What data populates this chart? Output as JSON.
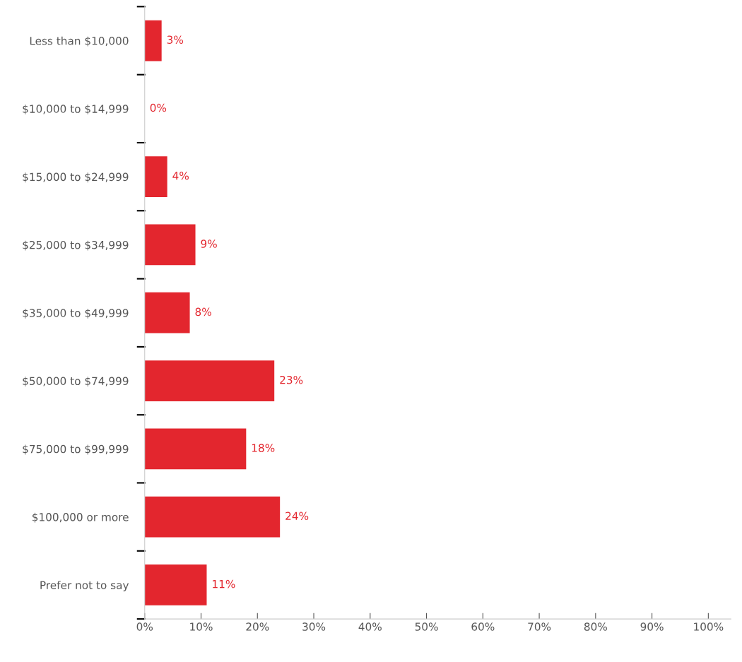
{
  "chart_data": {
    "type": "bar",
    "orientation": "horizontal",
    "categories": [
      "Less than $10,000",
      "$10,000 to $14,999",
      "$15,000 to $24,999",
      "$25,000 to $34,999",
      "$35,000 to $49,999",
      "$50,000 to $74,999",
      "$75,000 to $99,999",
      "$100,000 or more",
      "Prefer not to say"
    ],
    "values": [
      3,
      0,
      4,
      9,
      8,
      23,
      18,
      24,
      11
    ],
    "value_labels": [
      "3%",
      "0%",
      "4%",
      "9%",
      "8%",
      "23%",
      "18%",
      "24%",
      "11%"
    ],
    "color": "#e3262e",
    "xlim": [
      0,
      104
    ],
    "xticks": [
      {
        "value": 0,
        "label": "0%"
      },
      {
        "value": 10,
        "label": "10%"
      },
      {
        "value": 20,
        "label": "20%"
      },
      {
        "value": 30,
        "label": "30%"
      },
      {
        "value": 40,
        "label": "40%"
      },
      {
        "value": 50,
        "label": "50%"
      },
      {
        "value": 60,
        "label": "60%"
      },
      {
        "value": 70,
        "label": "70%"
      },
      {
        "value": 80,
        "label": "80%"
      },
      {
        "value": 90,
        "label": "90%"
      },
      {
        "value": 100,
        "label": "100%"
      }
    ],
    "grid": false,
    "legend": false
  }
}
